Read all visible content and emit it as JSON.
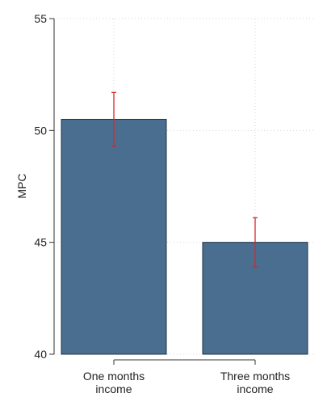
{
  "chart_data": {
    "type": "bar",
    "title": "",
    "xlabel": "",
    "ylabel": "MPC",
    "ylim": [
      40,
      55
    ],
    "yticks": [
      40,
      45,
      50,
      55
    ],
    "grid": true,
    "categories": [
      {
        "label_lines": [
          "One months",
          "income"
        ]
      },
      {
        "label_lines": [
          "Three months",
          "income"
        ]
      }
    ],
    "values": [
      50.5,
      45.0
    ],
    "error_bars": [
      {
        "low": 49.3,
        "high": 51.7
      },
      {
        "low": 43.9,
        "high": 46.1
      }
    ],
    "colors": {
      "bar_fill": "#4a6e8f",
      "bar_stroke": "#1f3347",
      "error_bar": "#d62728",
      "grid": "#d4d4d4",
      "axis": "#333333"
    }
  }
}
